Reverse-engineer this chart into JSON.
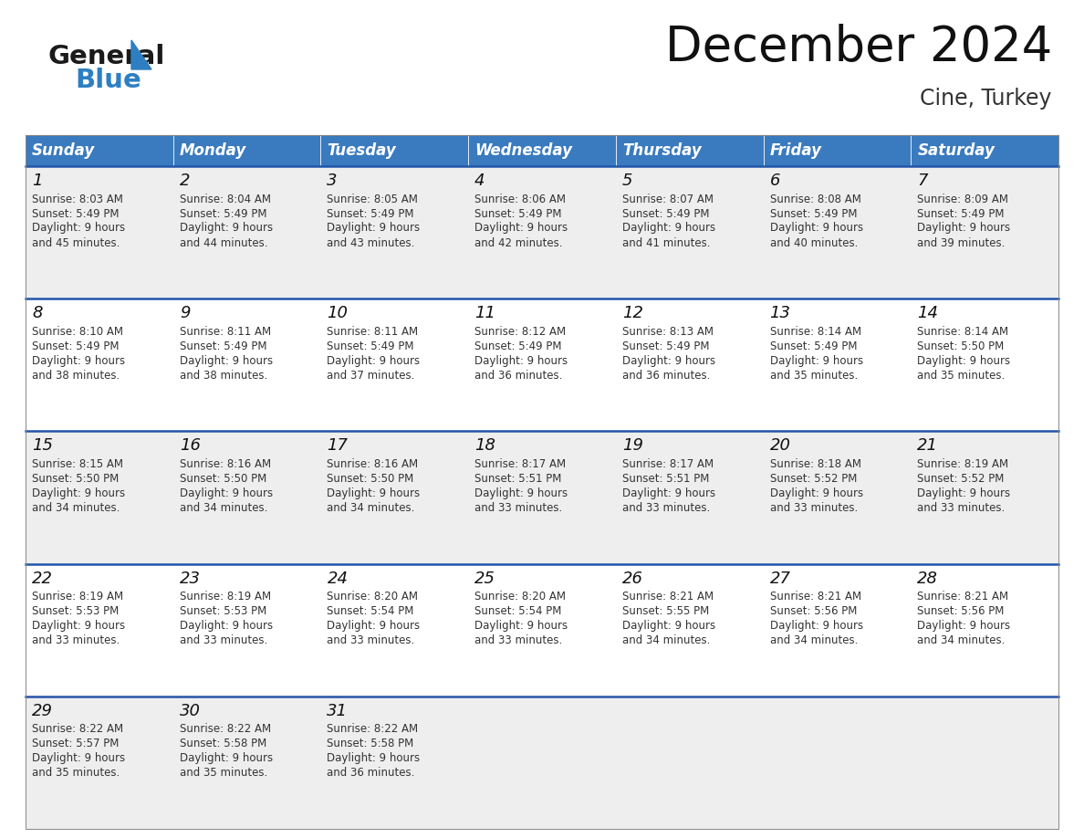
{
  "title": "December 2024",
  "subtitle": "Cine, Turkey",
  "header_color": "#3a7abf",
  "header_text_color": "#ffffff",
  "days_of_week": [
    "Sunday",
    "Monday",
    "Tuesday",
    "Wednesday",
    "Thursday",
    "Friday",
    "Saturday"
  ],
  "bg_color": "#ffffff",
  "cell_bg_even": "#eeeeee",
  "cell_bg_odd": "#ffffff",
  "row_line_color": "#2255aa",
  "calendar": [
    [
      {
        "day": 1,
        "sunrise": "8:03 AM",
        "sunset": "5:49 PM",
        "daylight_hours": 9,
        "daylight_minutes": 45
      },
      {
        "day": 2,
        "sunrise": "8:04 AM",
        "sunset": "5:49 PM",
        "daylight_hours": 9,
        "daylight_minutes": 44
      },
      {
        "day": 3,
        "sunrise": "8:05 AM",
        "sunset": "5:49 PM",
        "daylight_hours": 9,
        "daylight_minutes": 43
      },
      {
        "day": 4,
        "sunrise": "8:06 AM",
        "sunset": "5:49 PM",
        "daylight_hours": 9,
        "daylight_minutes": 42
      },
      {
        "day": 5,
        "sunrise": "8:07 AM",
        "sunset": "5:49 PM",
        "daylight_hours": 9,
        "daylight_minutes": 41
      },
      {
        "day": 6,
        "sunrise": "8:08 AM",
        "sunset": "5:49 PM",
        "daylight_hours": 9,
        "daylight_minutes": 40
      },
      {
        "day": 7,
        "sunrise": "8:09 AM",
        "sunset": "5:49 PM",
        "daylight_hours": 9,
        "daylight_minutes": 39
      }
    ],
    [
      {
        "day": 8,
        "sunrise": "8:10 AM",
        "sunset": "5:49 PM",
        "daylight_hours": 9,
        "daylight_minutes": 38
      },
      {
        "day": 9,
        "sunrise": "8:11 AM",
        "sunset": "5:49 PM",
        "daylight_hours": 9,
        "daylight_minutes": 38
      },
      {
        "day": 10,
        "sunrise": "8:11 AM",
        "sunset": "5:49 PM",
        "daylight_hours": 9,
        "daylight_minutes": 37
      },
      {
        "day": 11,
        "sunrise": "8:12 AM",
        "sunset": "5:49 PM",
        "daylight_hours": 9,
        "daylight_minutes": 36
      },
      {
        "day": 12,
        "sunrise": "8:13 AM",
        "sunset": "5:49 PM",
        "daylight_hours": 9,
        "daylight_minutes": 36
      },
      {
        "day": 13,
        "sunrise": "8:14 AM",
        "sunset": "5:49 PM",
        "daylight_hours": 9,
        "daylight_minutes": 35
      },
      {
        "day": 14,
        "sunrise": "8:14 AM",
        "sunset": "5:50 PM",
        "daylight_hours": 9,
        "daylight_minutes": 35
      }
    ],
    [
      {
        "day": 15,
        "sunrise": "8:15 AM",
        "sunset": "5:50 PM",
        "daylight_hours": 9,
        "daylight_minutes": 34
      },
      {
        "day": 16,
        "sunrise": "8:16 AM",
        "sunset": "5:50 PM",
        "daylight_hours": 9,
        "daylight_minutes": 34
      },
      {
        "day": 17,
        "sunrise": "8:16 AM",
        "sunset": "5:50 PM",
        "daylight_hours": 9,
        "daylight_minutes": 34
      },
      {
        "day": 18,
        "sunrise": "8:17 AM",
        "sunset": "5:51 PM",
        "daylight_hours": 9,
        "daylight_minutes": 33
      },
      {
        "day": 19,
        "sunrise": "8:17 AM",
        "sunset": "5:51 PM",
        "daylight_hours": 9,
        "daylight_minutes": 33
      },
      {
        "day": 20,
        "sunrise": "8:18 AM",
        "sunset": "5:52 PM",
        "daylight_hours": 9,
        "daylight_minutes": 33
      },
      {
        "day": 21,
        "sunrise": "8:19 AM",
        "sunset": "5:52 PM",
        "daylight_hours": 9,
        "daylight_minutes": 33
      }
    ],
    [
      {
        "day": 22,
        "sunrise": "8:19 AM",
        "sunset": "5:53 PM",
        "daylight_hours": 9,
        "daylight_minutes": 33
      },
      {
        "day": 23,
        "sunrise": "8:19 AM",
        "sunset": "5:53 PM",
        "daylight_hours": 9,
        "daylight_minutes": 33
      },
      {
        "day": 24,
        "sunrise": "8:20 AM",
        "sunset": "5:54 PM",
        "daylight_hours": 9,
        "daylight_minutes": 33
      },
      {
        "day": 25,
        "sunrise": "8:20 AM",
        "sunset": "5:54 PM",
        "daylight_hours": 9,
        "daylight_minutes": 33
      },
      {
        "day": 26,
        "sunrise": "8:21 AM",
        "sunset": "5:55 PM",
        "daylight_hours": 9,
        "daylight_minutes": 34
      },
      {
        "day": 27,
        "sunrise": "8:21 AM",
        "sunset": "5:56 PM",
        "daylight_hours": 9,
        "daylight_minutes": 34
      },
      {
        "day": 28,
        "sunrise": "8:21 AM",
        "sunset": "5:56 PM",
        "daylight_hours": 9,
        "daylight_minutes": 34
      }
    ],
    [
      {
        "day": 29,
        "sunrise": "8:22 AM",
        "sunset": "5:57 PM",
        "daylight_hours": 9,
        "daylight_minutes": 35
      },
      {
        "day": 30,
        "sunrise": "8:22 AM",
        "sunset": "5:58 PM",
        "daylight_hours": 9,
        "daylight_minutes": 35
      },
      {
        "day": 31,
        "sunrise": "8:22 AM",
        "sunset": "5:58 PM",
        "daylight_hours": 9,
        "daylight_minutes": 36
      },
      null,
      null,
      null,
      null
    ]
  ],
  "logo_general_color": "#1a1a1a",
  "logo_blue_color": "#2e7fc2",
  "title_fontsize": 38,
  "subtitle_fontsize": 17,
  "header_fontsize": 12,
  "day_num_fontsize": 13,
  "cell_text_fontsize": 8.5
}
